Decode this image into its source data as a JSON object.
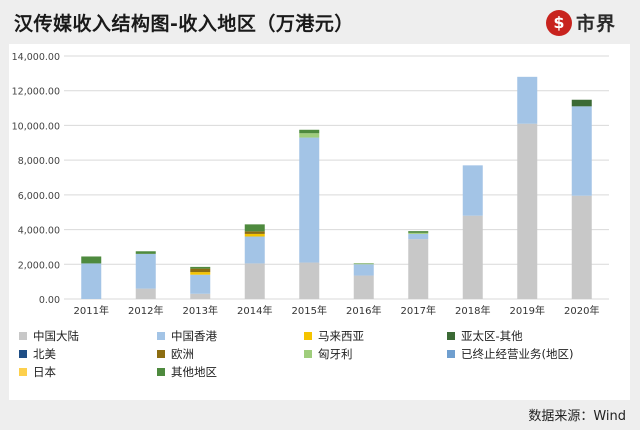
{
  "header": {
    "title": "汉传媒收入结构图-收入地区（万港元）",
    "logo_text": "市界",
    "logo_icon": "shijie-coin-logo-icon"
  },
  "footer": {
    "source": "数据来源：Wind"
  },
  "colors": {
    "background": "#eeeeee",
    "panel": "#ffffff",
    "gridline": "#d9d9d9",
    "brand_red": "#c8231e"
  },
  "chart_data": {
    "type": "bar",
    "stacked": true,
    "categories": [
      "2011年",
      "2012年",
      "2013年",
      "2014年",
      "2015年",
      "2016年",
      "2017年",
      "2018年",
      "2019年",
      "2020年"
    ],
    "ylim": [
      0,
      14000
    ],
    "yticks": [
      "0.00",
      "2,000.00",
      "4,000.00",
      "6,000.00",
      "8,000.00",
      "10,000.00",
      "12,000.00",
      "14,000.00"
    ],
    "grid": true,
    "legend_position": "bottom",
    "series": [
      {
        "name": "中国大陆",
        "color": "#c8c8c8",
        "values": [
          0,
          600,
          300,
          2050,
          2100,
          1350,
          3450,
          4800,
          10100,
          5950
        ]
      },
      {
        "name": "中国香港",
        "color": "#a3c4e6",
        "values": [
          2050,
          2000,
          1100,
          1550,
          7200,
          650,
          300,
          2900,
          2700,
          5150
        ]
      },
      {
        "name": "马来西亚",
        "color": "#f5c400",
        "values": [
          0,
          0,
          150,
          150,
          0,
          0,
          0,
          0,
          0,
          0
        ]
      },
      {
        "name": "亚太区-其他",
        "color": "#3b6a35",
        "values": [
          0,
          0,
          0,
          0,
          0,
          0,
          0,
          0,
          0,
          380
        ]
      },
      {
        "name": "北美",
        "color": "#1f4e86",
        "values": [
          0,
          0,
          0,
          0,
          0,
          0,
          0,
          0,
          0,
          0
        ]
      },
      {
        "name": "欧洲",
        "color": "#8c6d11",
        "values": [
          0,
          0,
          200,
          150,
          0,
          0,
          0,
          0,
          0,
          0
        ]
      },
      {
        "name": "匈牙利",
        "color": "#9fcd7c",
        "values": [
          0,
          0,
          0,
          0,
          250,
          40,
          60,
          0,
          0,
          0
        ]
      },
      {
        "name": "已终止经营业务(地区)",
        "color": "#6f9fcf",
        "values": [
          0,
          0,
          0,
          0,
          0,
          0,
          0,
          0,
          0,
          0
        ]
      },
      {
        "name": "日本",
        "color": "#fdd04d",
        "values": [
          0,
          0,
          0,
          0,
          0,
          0,
          0,
          0,
          0,
          0
        ]
      },
      {
        "name": "其他地区",
        "color": "#4e8a3e",
        "values": [
          400,
          150,
          100,
          400,
          200,
          20,
          100,
          0,
          0,
          0
        ]
      }
    ]
  }
}
